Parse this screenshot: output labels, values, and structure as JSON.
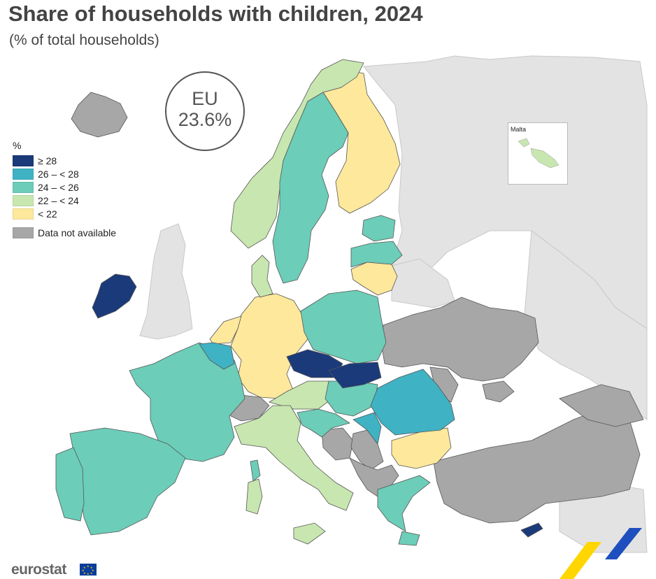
{
  "title": "Share of households with children, 2024",
  "subtitle": "(% of total households)",
  "eu_badge": {
    "line1": "EU",
    "line2": "23.6%"
  },
  "legend": {
    "unit": "%",
    "items": [
      {
        "label": "≥ 28",
        "color": "#1b3a7a"
      },
      {
        "label": "26 – < 28",
        "color": "#3fb2c4"
      },
      {
        "label": "24 – < 26",
        "color": "#6ccdb8"
      },
      {
        "label": "22 – < 24",
        "color": "#c8e6b0"
      },
      {
        "label": "< 22",
        "color": "#fde89c"
      }
    ],
    "na": {
      "label": "Data not available",
      "color": "#a7a7a7"
    }
  },
  "inset_label": "Malta",
  "logo_text": "eurostat",
  "colors": {
    "background_land": "#e3e3e3",
    "sea": "#ffffff",
    "border": "#555555"
  }
}
